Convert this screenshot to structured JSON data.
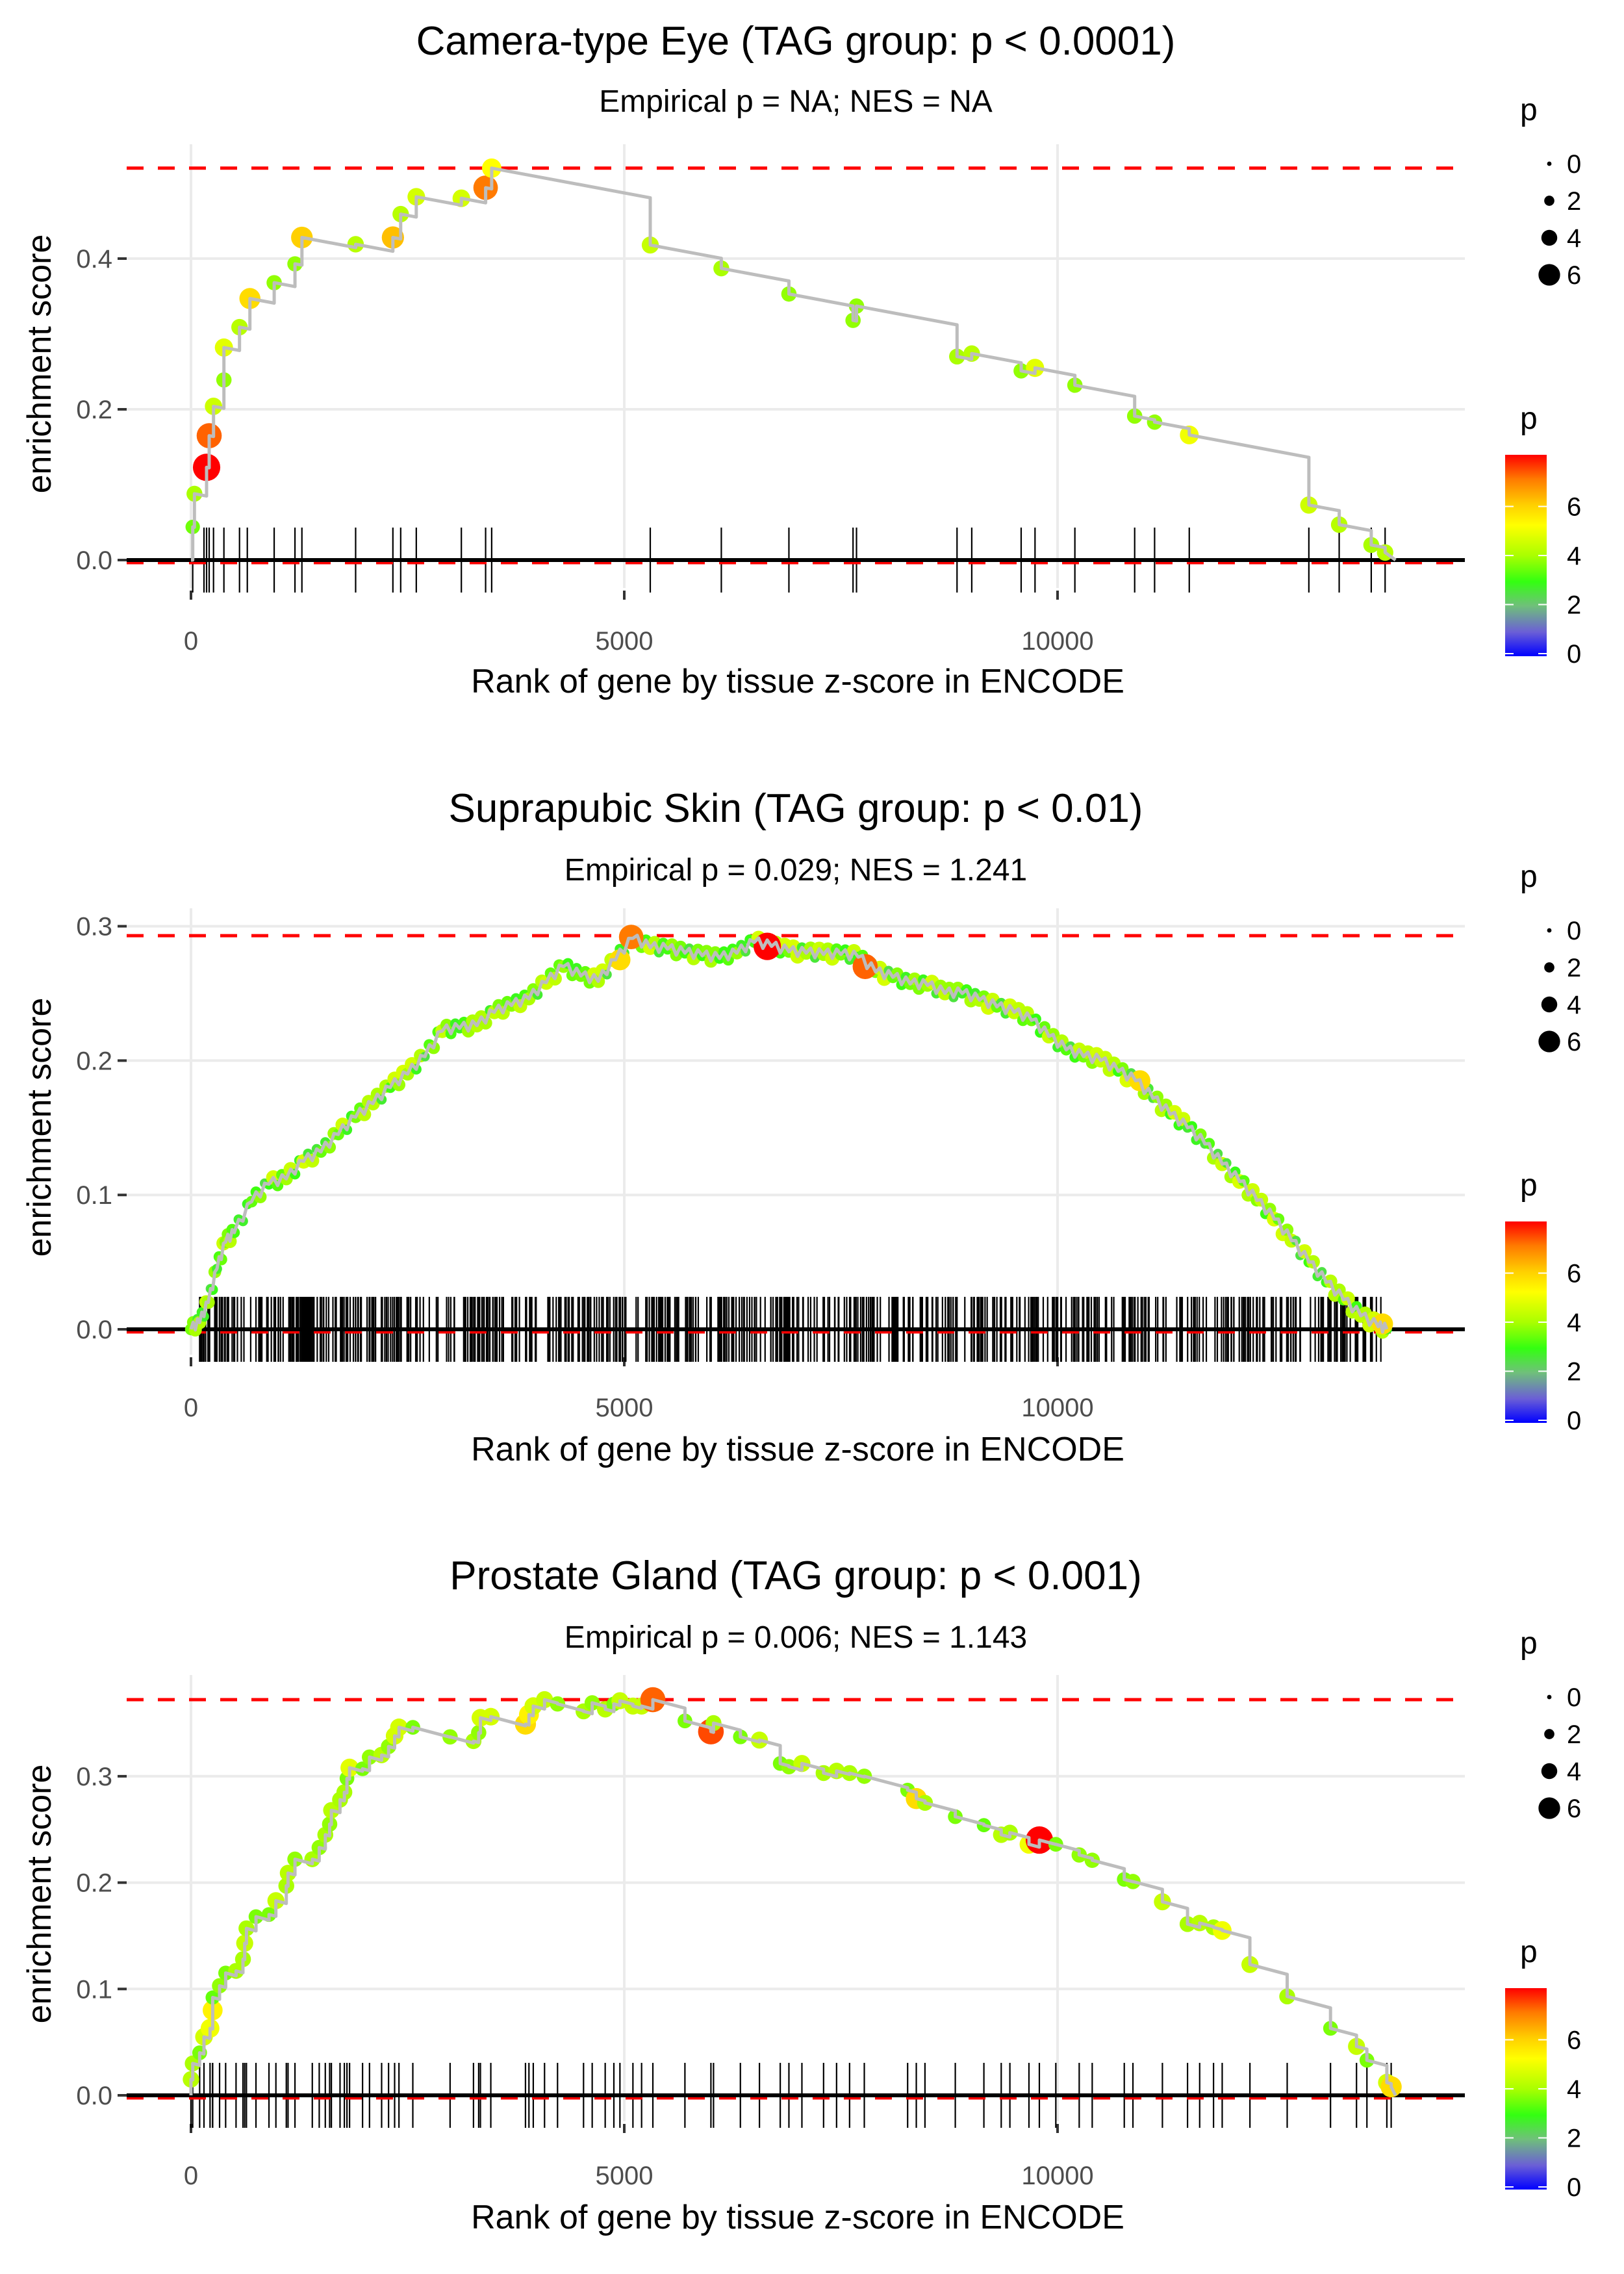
{
  "figure": {
    "description": "Three GSEA-style running enrichment score plots"
  },
  "chart_data": [
    {
      "type": "line",
      "title": "Camera-type Eye (TAG group: p < 0.0001)",
      "subtitle": "Empirical p = NA; NES = NA",
      "xlabel": "Rank of gene by tissue z-score in ENCODE",
      "ylabel": "enrichment score",
      "xlim": [
        -700,
        14700
      ],
      "ylim": [
        -0.01,
        0.54
      ],
      "x_ticks": [
        0,
        5000,
        10000
      ],
      "x_tick_labels": [
        "0",
        "5000",
        "10000"
      ],
      "y_ticks": [
        0.0,
        0.2,
        0.4
      ],
      "y_tick_labels": [
        "0.0",
        "0.2",
        "0.4"
      ],
      "grid": true,
      "max_es_line": 0.52,
      "zero_line": 0.0,
      "legend": {
        "size_title": "p",
        "size_breaks": [
          "0",
          "2",
          "4",
          "6"
        ],
        "color_title": "p",
        "color_breaks": [
          "0",
          "2",
          "4",
          "6"
        ],
        "color_range": [
          0,
          8
        ],
        "placement": "right"
      },
      "points": [
        {
          "x": 20,
          "y": 0.044,
          "p": 3.5
        },
        {
          "x": 40,
          "y": 0.088,
          "p": 4.0
        },
        {
          "x": 180,
          "y": 0.123,
          "p": 8.0
        },
        {
          "x": 210,
          "y": 0.165,
          "p": 7.2
        },
        {
          "x": 260,
          "y": 0.204,
          "p": 4.5
        },
        {
          "x": 380,
          "y": 0.239,
          "p": 3.8
        },
        {
          "x": 380,
          "y": 0.282,
          "p": 4.8
        },
        {
          "x": 560,
          "y": 0.309,
          "p": 4.2
        },
        {
          "x": 680,
          "y": 0.347,
          "p": 5.8
        },
        {
          "x": 960,
          "y": 0.368,
          "p": 3.8
        },
        {
          "x": 1200,
          "y": 0.393,
          "p": 3.8
        },
        {
          "x": 1280,
          "y": 0.428,
          "p": 6.0
        },
        {
          "x": 1900,
          "y": 0.419,
          "p": 4.2
        },
        {
          "x": 2330,
          "y": 0.428,
          "p": 6.2
        },
        {
          "x": 2420,
          "y": 0.459,
          "p": 4.2
        },
        {
          "x": 2600,
          "y": 0.482,
          "p": 4.6
        },
        {
          "x": 3120,
          "y": 0.48,
          "p": 4.6
        },
        {
          "x": 3400,
          "y": 0.494,
          "p": 7.0
        },
        {
          "x": 3470,
          "y": 0.52,
          "p": 5.2
        },
        {
          "x": 5300,
          "y": 0.418,
          "p": 4.4
        },
        {
          "x": 6120,
          "y": 0.387,
          "p": 4.0
        },
        {
          "x": 6900,
          "y": 0.353,
          "p": 3.8
        },
        {
          "x": 7640,
          "y": 0.318,
          "p": 3.8
        },
        {
          "x": 7680,
          "y": 0.337,
          "p": 3.8
        },
        {
          "x": 8840,
          "y": 0.27,
          "p": 4.0
        },
        {
          "x": 9010,
          "y": 0.274,
          "p": 4.2
        },
        {
          "x": 9580,
          "y": 0.251,
          "p": 3.8
        },
        {
          "x": 9740,
          "y": 0.255,
          "p": 4.8
        },
        {
          "x": 10200,
          "y": 0.232,
          "p": 3.8
        },
        {
          "x": 10890,
          "y": 0.191,
          "p": 3.8
        },
        {
          "x": 11120,
          "y": 0.183,
          "p": 3.8
        },
        {
          "x": 11520,
          "y": 0.166,
          "p": 5.0
        },
        {
          "x": 12900,
          "y": 0.073,
          "p": 4.5
        },
        {
          "x": 13250,
          "y": 0.047,
          "p": 4.2
        },
        {
          "x": 13620,
          "y": 0.02,
          "p": 4.0
        },
        {
          "x": 13780,
          "y": 0.01,
          "p": 4.2
        }
      ],
      "hit_ranks": [
        20,
        150,
        180,
        210,
        260,
        380,
        560,
        650,
        960,
        1200,
        1280,
        1900,
        2330,
        2420,
        2600,
        3120,
        3400,
        3470,
        5300,
        6120,
        6900,
        7640,
        7680,
        8840,
        9010,
        9580,
        9740,
        10200,
        10890,
        11120,
        11520,
        12900,
        13250,
        13620,
        13780
      ]
    },
    {
      "type": "line",
      "title": "Suprapubic Skin (TAG group: p < 0.01)",
      "subtitle": "Empirical p = 0.029; NES = 1.241",
      "xlabel": "Rank of gene by tissue z-score in ENCODE",
      "ylabel": "enrichment score",
      "xlim": [
        -700,
        14700
      ],
      "ylim": [
        -0.005,
        0.31
      ],
      "x_ticks": [
        0,
        5000,
        10000
      ],
      "x_tick_labels": [
        "0",
        "5000",
        "10000"
      ],
      "y_ticks": [
        0.0,
        0.1,
        0.2,
        0.3
      ],
      "y_tick_labels": [
        "0.0",
        "0.1",
        "0.2",
        "0.3"
      ],
      "grid": true,
      "max_es_line": 0.293,
      "zero_line": 0.0,
      "legend": {
        "size_title": "p",
        "size_breaks": [
          "0",
          "2",
          "4",
          "6"
        ],
        "color_title": "p",
        "color_breaks": [
          "0",
          "2",
          "4",
          "6"
        ],
        "color_range": [
          0,
          8
        ],
        "placement": "right"
      },
      "curve": [
        [
          0,
          0.0
        ],
        [
          100,
          0.005
        ],
        [
          200,
          0.02
        ],
        [
          300,
          0.045
        ],
        [
          400,
          0.065
        ],
        [
          500,
          0.072
        ],
        [
          700,
          0.095
        ],
        [
          900,
          0.108
        ],
        [
          1100,
          0.112
        ],
        [
          1300,
          0.125
        ],
        [
          1500,
          0.132
        ],
        [
          1700,
          0.145
        ],
        [
          1900,
          0.158
        ],
        [
          2100,
          0.168
        ],
        [
          2300,
          0.18
        ],
        [
          2500,
          0.19
        ],
        [
          2700,
          0.203
        ],
        [
          2900,
          0.222
        ],
        [
          3100,
          0.224
        ],
        [
          3300,
          0.226
        ],
        [
          3500,
          0.236
        ],
        [
          3700,
          0.241
        ],
        [
          3900,
          0.246
        ],
        [
          4100,
          0.258
        ],
        [
          4300,
          0.27
        ],
        [
          4500,
          0.263
        ],
        [
          4700,
          0.259
        ],
        [
          4900,
          0.275
        ],
        [
          5100,
          0.291
        ],
        [
          5300,
          0.284
        ],
        [
          5500,
          0.283
        ],
        [
          5700,
          0.28
        ],
        [
          5900,
          0.278
        ],
        [
          6100,
          0.276
        ],
        [
          6300,
          0.28
        ],
        [
          6500,
          0.288
        ],
        [
          6700,
          0.285
        ],
        [
          6900,
          0.281
        ],
        [
          7100,
          0.28
        ],
        [
          7300,
          0.279
        ],
        [
          7500,
          0.279
        ],
        [
          7700,
          0.277
        ],
        [
          7900,
          0.266
        ],
        [
          8100,
          0.262
        ],
        [
          8300,
          0.257
        ],
        [
          8500,
          0.256
        ],
        [
          8700,
          0.25
        ],
        [
          8900,
          0.25
        ],
        [
          9100,
          0.245
        ],
        [
          9300,
          0.24
        ],
        [
          9500,
          0.236
        ],
        [
          9700,
          0.23
        ],
        [
          9900,
          0.218
        ],
        [
          10100,
          0.208
        ],
        [
          10300,
          0.203
        ],
        [
          10500,
          0.2
        ],
        [
          10700,
          0.192
        ],
        [
          10900,
          0.185
        ],
        [
          11100,
          0.172
        ],
        [
          11300,
          0.16
        ],
        [
          11500,
          0.15
        ],
        [
          11700,
          0.138
        ],
        [
          11900,
          0.123
        ],
        [
          12100,
          0.11
        ],
        [
          12300,
          0.096
        ],
        [
          12500,
          0.082
        ],
        [
          12700,
          0.066
        ],
        [
          12900,
          0.05
        ],
        [
          13100,
          0.035
        ],
        [
          13300,
          0.022
        ],
        [
          13500,
          0.01
        ],
        [
          13700,
          0.002
        ],
        [
          13800,
          0.0
        ]
      ],
      "highlight_points": [
        {
          "x": 5080,
          "y": 0.292,
          "p": 7.0
        },
        {
          "x": 4950,
          "y": 0.275,
          "p": 5.8
        },
        {
          "x": 6650,
          "y": 0.285,
          "p": 8.0
        },
        {
          "x": 7780,
          "y": 0.27,
          "p": 7.2
        },
        {
          "x": 10950,
          "y": 0.185,
          "p": 5.8
        },
        {
          "x": 13750,
          "y": 0.004,
          "p": 5.8
        }
      ],
      "hit_count_approx": 600
    },
    {
      "type": "line",
      "title": "Prostate Gland (TAG group: p < 0.001)",
      "subtitle": "Empirical p = 0.006; NES = 1.143",
      "xlabel": "Rank of gene by tissue z-score in ENCODE",
      "ylabel": "enrichment score",
      "xlim": [
        -700,
        14700
      ],
      "ylim": [
        -0.007,
        0.385
      ],
      "x_ticks": [
        0,
        5000,
        10000
      ],
      "x_tick_labels": [
        "0",
        "5000",
        "10000"
      ],
      "y_ticks": [
        0.0,
        0.1,
        0.2,
        0.3
      ],
      "y_tick_labels": [
        "0.0",
        "0.1",
        "0.2",
        "0.3"
      ],
      "grid": true,
      "max_es_line": 0.372,
      "zero_line": 0.0,
      "legend": {
        "size_title": "p",
        "size_breaks": [
          "0",
          "2",
          "4",
          "6"
        ],
        "color_title": "p",
        "color_breaks": [
          "0",
          "2",
          "4",
          "6"
        ],
        "color_range": [
          0,
          8
        ],
        "placement": "right"
      },
      "points": [
        {
          "x": 0,
          "y": 0.015,
          "p": 4.2
        },
        {
          "x": 20,
          "y": 0.03,
          "p": 4.0
        },
        {
          "x": 100,
          "y": 0.04,
          "p": 3.6
        },
        {
          "x": 150,
          "y": 0.055,
          "p": 4.6
        },
        {
          "x": 220,
          "y": 0.063,
          "p": 5.0
        },
        {
          "x": 250,
          "y": 0.08,
          "p": 5.4
        },
        {
          "x": 250,
          "y": 0.092,
          "p": 3.4
        },
        {
          "x": 330,
          "y": 0.103,
          "p": 3.8
        },
        {
          "x": 400,
          "y": 0.115,
          "p": 3.6
        },
        {
          "x": 520,
          "y": 0.117,
          "p": 4.0
        },
        {
          "x": 600,
          "y": 0.128,
          "p": 4.0
        },
        {
          "x": 620,
          "y": 0.143,
          "p": 4.4
        },
        {
          "x": 640,
          "y": 0.157,
          "p": 4.0
        },
        {
          "x": 750,
          "y": 0.168,
          "p": 3.6
        },
        {
          "x": 900,
          "y": 0.17,
          "p": 3.6
        },
        {
          "x": 980,
          "y": 0.183,
          "p": 4.4
        },
        {
          "x": 1100,
          "y": 0.197,
          "p": 4.0
        },
        {
          "x": 1120,
          "y": 0.209,
          "p": 4.2
        },
        {
          "x": 1200,
          "y": 0.222,
          "p": 3.8
        },
        {
          "x": 1400,
          "y": 0.222,
          "p": 4.0
        },
        {
          "x": 1480,
          "y": 0.233,
          "p": 3.8
        },
        {
          "x": 1550,
          "y": 0.245,
          "p": 4.0
        },
        {
          "x": 1600,
          "y": 0.255,
          "p": 3.8
        },
        {
          "x": 1620,
          "y": 0.268,
          "p": 4.2
        },
        {
          "x": 1720,
          "y": 0.278,
          "p": 4.0
        },
        {
          "x": 1770,
          "y": 0.285,
          "p": 4.0
        },
        {
          "x": 1800,
          "y": 0.298,
          "p": 3.6
        },
        {
          "x": 1830,
          "y": 0.308,
          "p": 4.8
        },
        {
          "x": 1980,
          "y": 0.307,
          "p": 3.6
        },
        {
          "x": 2060,
          "y": 0.318,
          "p": 3.8
        },
        {
          "x": 2200,
          "y": 0.32,
          "p": 4.2
        },
        {
          "x": 2280,
          "y": 0.328,
          "p": 3.8
        },
        {
          "x": 2350,
          "y": 0.338,
          "p": 4.6
        },
        {
          "x": 2400,
          "y": 0.346,
          "p": 4.6
        },
        {
          "x": 2560,
          "y": 0.346,
          "p": 3.6
        },
        {
          "x": 2990,
          "y": 0.337,
          "p": 3.8
        },
        {
          "x": 3260,
          "y": 0.333,
          "p": 4.0
        },
        {
          "x": 3320,
          "y": 0.341,
          "p": 3.8
        },
        {
          "x": 3340,
          "y": 0.355,
          "p": 4.6
        },
        {
          "x": 3460,
          "y": 0.356,
          "p": 4.6
        },
        {
          "x": 3860,
          "y": 0.349,
          "p": 5.8
        },
        {
          "x": 3900,
          "y": 0.358,
          "p": 5.4
        },
        {
          "x": 3950,
          "y": 0.366,
          "p": 4.6
        },
        {
          "x": 4080,
          "y": 0.372,
          "p": 4.4
        },
        {
          "x": 4230,
          "y": 0.368,
          "p": 3.8
        },
        {
          "x": 4530,
          "y": 0.361,
          "p": 4.0
        },
        {
          "x": 4630,
          "y": 0.369,
          "p": 3.8
        },
        {
          "x": 4780,
          "y": 0.363,
          "p": 4.2
        },
        {
          "x": 4880,
          "y": 0.368,
          "p": 3.6
        },
        {
          "x": 4950,
          "y": 0.371,
          "p": 4.4
        },
        {
          "x": 5100,
          "y": 0.366,
          "p": 4.4
        },
        {
          "x": 5200,
          "y": 0.366,
          "p": 4.4
        },
        {
          "x": 5330,
          "y": 0.372,
          "p": 7.2
        },
        {
          "x": 5700,
          "y": 0.352,
          "p": 3.6
        },
        {
          "x": 6000,
          "y": 0.342,
          "p": 7.4
        },
        {
          "x": 6030,
          "y": 0.35,
          "p": 4.0
        },
        {
          "x": 6340,
          "y": 0.337,
          "p": 3.6
        },
        {
          "x": 6560,
          "y": 0.334,
          "p": 4.4
        },
        {
          "x": 6800,
          "y": 0.312,
          "p": 3.6
        },
        {
          "x": 6900,
          "y": 0.309,
          "p": 3.8
        },
        {
          "x": 7050,
          "y": 0.312,
          "p": 4.4
        },
        {
          "x": 7300,
          "y": 0.303,
          "p": 4.0
        },
        {
          "x": 7450,
          "y": 0.305,
          "p": 4.2
        },
        {
          "x": 7600,
          "y": 0.303,
          "p": 4.0
        },
        {
          "x": 7770,
          "y": 0.3,
          "p": 3.8
        },
        {
          "x": 8270,
          "y": 0.287,
          "p": 3.6
        },
        {
          "x": 8370,
          "y": 0.279,
          "p": 5.8
        },
        {
          "x": 8470,
          "y": 0.275,
          "p": 4.0
        },
        {
          "x": 8820,
          "y": 0.262,
          "p": 3.6
        },
        {
          "x": 9150,
          "y": 0.254,
          "p": 3.4
        },
        {
          "x": 9350,
          "y": 0.245,
          "p": 4.2
        },
        {
          "x": 9450,
          "y": 0.247,
          "p": 4.0
        },
        {
          "x": 9670,
          "y": 0.236,
          "p": 5.0
        },
        {
          "x": 9790,
          "y": 0.24,
          "p": 8.0
        },
        {
          "x": 9980,
          "y": 0.236,
          "p": 3.6
        },
        {
          "x": 10250,
          "y": 0.226,
          "p": 3.8
        },
        {
          "x": 10400,
          "y": 0.221,
          "p": 3.8
        },
        {
          "x": 10770,
          "y": 0.203,
          "p": 3.6
        },
        {
          "x": 10870,
          "y": 0.201,
          "p": 3.8
        },
        {
          "x": 11210,
          "y": 0.182,
          "p": 4.4
        },
        {
          "x": 11500,
          "y": 0.161,
          "p": 4.0
        },
        {
          "x": 11640,
          "y": 0.162,
          "p": 4.2
        },
        {
          "x": 11800,
          "y": 0.158,
          "p": 4.0
        },
        {
          "x": 11900,
          "y": 0.155,
          "p": 5.0
        },
        {
          "x": 12220,
          "y": 0.123,
          "p": 4.4
        },
        {
          "x": 12650,
          "y": 0.093,
          "p": 4.0
        },
        {
          "x": 13150,
          "y": 0.063,
          "p": 3.6
        },
        {
          "x": 13450,
          "y": 0.046,
          "p": 4.4
        },
        {
          "x": 13570,
          "y": 0.033,
          "p": 3.6
        },
        {
          "x": 13800,
          "y": 0.012,
          "p": 4.6
        },
        {
          "x": 13850,
          "y": 0.008,
          "p": 5.8
        }
      ]
    }
  ]
}
